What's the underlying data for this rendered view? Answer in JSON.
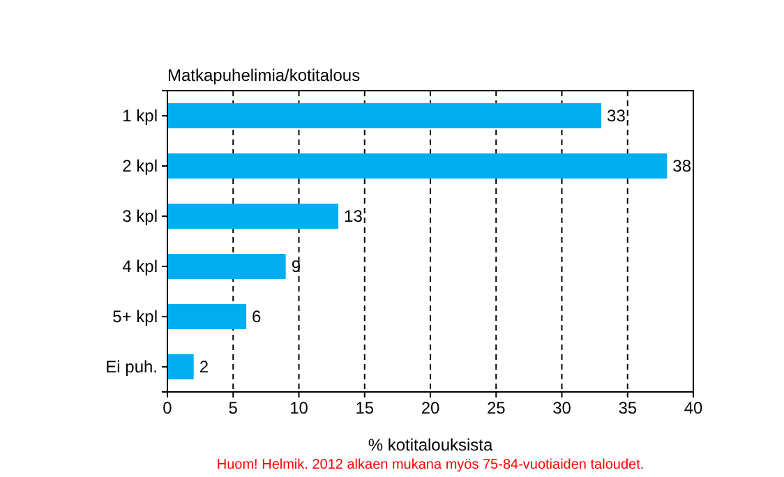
{
  "chart_data": {
    "type": "bar",
    "orientation": "horizontal",
    "title": "Matkapuhelimia/kotitalous",
    "xlabel": "% kotitalouksista",
    "annotations": [
      "Huom! Helmik. 2012 alkaen mukana myös 75-84-vuotiaiden taloudet."
    ],
    "categories": [
      "1 kpl",
      "2 kpl",
      "3 kpl",
      "4 kpl",
      "5+ kpl",
      "Ei puh."
    ],
    "values": [
      33,
      38,
      13,
      9,
      6,
      2
    ],
    "color": "#00aeef",
    "data_labels": true,
    "xlim": [
      0,
      40
    ],
    "xticks": [
      0,
      5,
      10,
      15,
      20,
      25,
      30,
      35,
      40
    ],
    "grid": "x"
  }
}
